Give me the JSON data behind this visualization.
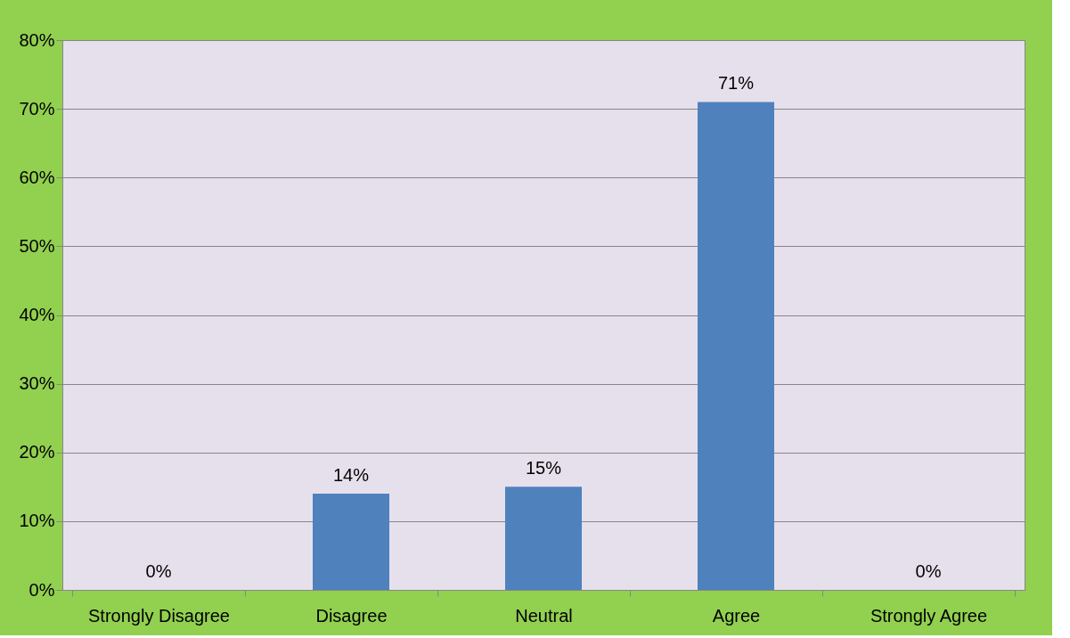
{
  "chart_data": {
    "type": "bar",
    "categories": [
      "Strongly Disagree",
      "Disagree",
      "Neutral",
      "Agree",
      "Strongly Agree"
    ],
    "values": [
      0,
      14,
      15,
      71,
      0
    ],
    "value_labels": [
      "0%",
      "14%",
      "15%",
      "71%",
      "0%"
    ],
    "color": "#4f81bd",
    "ylim": [
      0,
      80
    ],
    "yticks": [
      {
        "value": 0,
        "label": "0%"
      },
      {
        "value": 10,
        "label": "10%"
      },
      {
        "value": 20,
        "label": "20%"
      },
      {
        "value": 30,
        "label": "30%"
      },
      {
        "value": 40,
        "label": "40%"
      },
      {
        "value": 50,
        "label": "50%"
      },
      {
        "value": 60,
        "label": "60%"
      },
      {
        "value": 70,
        "label": "70%"
      },
      {
        "value": 80,
        "label": "80%"
      }
    ],
    "grid": "y"
  }
}
